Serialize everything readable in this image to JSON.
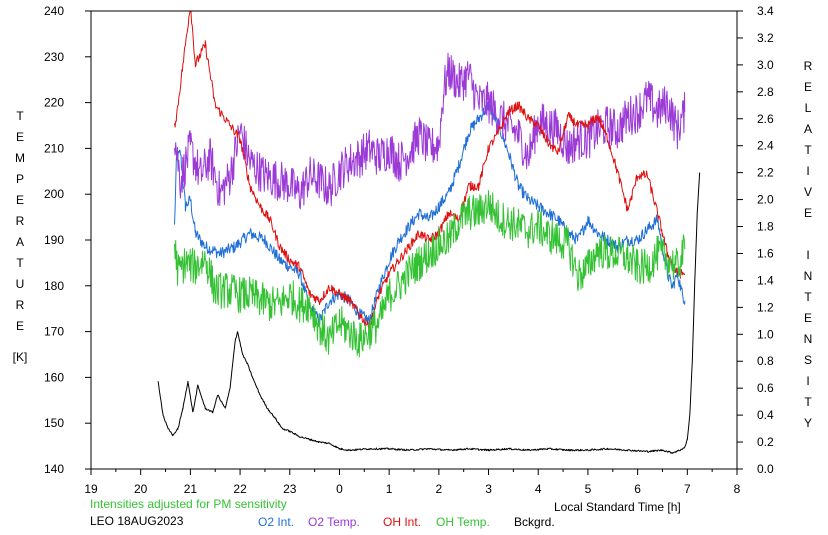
{
  "chart_data": {
    "type": "line",
    "left_axis": {
      "label_letters": [
        "T",
        "E",
        "M",
        "P",
        "E",
        "R",
        "A",
        "T",
        "U",
        "R",
        "E"
      ],
      "unit": "[K]",
      "range": [
        140,
        240
      ],
      "ticks": [
        140,
        150,
        160,
        170,
        180,
        190,
        200,
        210,
        220,
        230,
        240
      ]
    },
    "right_axis": {
      "label_letters": [
        "R",
        "E",
        "L",
        "A",
        "T",
        "I",
        "V",
        "E",
        " ",
        "I",
        "N",
        "T",
        "E",
        "N",
        "S",
        "I",
        "T",
        "Y"
      ],
      "range": [
        0.0,
        3.4
      ],
      "ticks": [
        "0.0",
        "0.2",
        "0.4",
        "0.6",
        "0.8",
        "1.0",
        "1.2",
        "1.4",
        "1.6",
        "1.8",
        "2.0",
        "2.2",
        "2.4",
        "2.6",
        "2.8",
        "3.0",
        "3.2",
        "3.4"
      ]
    },
    "x_axis": {
      "label": "Local Standard Time [h]",
      "range": [
        19,
        32
      ],
      "ticks": [
        "19",
        "20",
        "21",
        "22",
        "23",
        "0",
        "1",
        "2",
        "3",
        "4",
        "5",
        "6",
        "7",
        "8"
      ]
    },
    "note": "Intensities adjusted for PM sensitivity",
    "station": "LEO 18AUG2023",
    "legend": [
      "O2 Int.",
      "O2 Temp.",
      "OH Int.",
      "OH Temp.",
      "Bckgrd."
    ],
    "series": [
      {
        "name": "O2 Int.",
        "color": "#1f6fd6",
        "axis": "right",
        "noise": 0.045,
        "points": [
          [
            20.68,
            1.8
          ],
          [
            20.72,
            2.3
          ],
          [
            20.8,
            2.35
          ],
          [
            20.9,
            1.95
          ],
          [
            21.0,
            2.0
          ],
          [
            21.1,
            1.75
          ],
          [
            21.3,
            1.65
          ],
          [
            21.6,
            1.6
          ],
          [
            21.9,
            1.65
          ],
          [
            22.2,
            1.75
          ],
          [
            22.5,
            1.7
          ],
          [
            22.8,
            1.55
          ],
          [
            23.0,
            1.5
          ],
          [
            23.2,
            1.45
          ],
          [
            23.4,
            1.2
          ],
          [
            23.6,
            1.1
          ],
          [
            23.8,
            1.25
          ],
          [
            24.0,
            1.3
          ],
          [
            24.2,
            1.25
          ],
          [
            24.4,
            1.15
          ],
          [
            24.6,
            1.1
          ],
          [
            24.8,
            1.35
          ],
          [
            25.0,
            1.55
          ],
          [
            25.2,
            1.7
          ],
          [
            25.4,
            1.8
          ],
          [
            25.6,
            1.9
          ],
          [
            25.8,
            1.85
          ],
          [
            26.0,
            1.95
          ],
          [
            26.2,
            2.05
          ],
          [
            26.4,
            2.25
          ],
          [
            26.6,
            2.5
          ],
          [
            26.8,
            2.6
          ],
          [
            27.0,
            2.7
          ],
          [
            27.2,
            2.55
          ],
          [
            27.4,
            2.35
          ],
          [
            27.6,
            2.1
          ],
          [
            27.8,
            2.0
          ],
          [
            28.0,
            1.95
          ],
          [
            28.2,
            1.9
          ],
          [
            28.4,
            1.85
          ],
          [
            28.6,
            1.75
          ],
          [
            28.8,
            1.7
          ],
          [
            29.0,
            1.85
          ],
          [
            29.2,
            1.75
          ],
          [
            29.4,
            1.7
          ],
          [
            29.6,
            1.65
          ],
          [
            29.8,
            1.7
          ],
          [
            30.0,
            1.7
          ],
          [
            30.2,
            1.78
          ],
          [
            30.4,
            1.85
          ],
          [
            30.6,
            1.45
          ],
          [
            30.7,
            1.35
          ],
          [
            30.8,
            1.45
          ],
          [
            30.9,
            1.3
          ],
          [
            30.95,
            1.25
          ]
        ]
      },
      {
        "name": "O2 Temp.",
        "color": "#9b3ad6",
        "axis": "left",
        "noise": 4.5,
        "points": [
          [
            20.68,
            213
          ],
          [
            20.8,
            203
          ],
          [
            21.0,
            210
          ],
          [
            21.2,
            204
          ],
          [
            21.4,
            208
          ],
          [
            21.6,
            200
          ],
          [
            21.8,
            204
          ],
          [
            22.0,
            214
          ],
          [
            22.2,
            207
          ],
          [
            22.5,
            204
          ],
          [
            22.8,
            203
          ],
          [
            23.0,
            202
          ],
          [
            23.2,
            200
          ],
          [
            23.4,
            204
          ],
          [
            23.6,
            203
          ],
          [
            23.8,
            201
          ],
          [
            24.0,
            205
          ],
          [
            24.2,
            207
          ],
          [
            24.4,
            208
          ],
          [
            24.6,
            210
          ],
          [
            24.8,
            208
          ],
          [
            25.0,
            210
          ],
          [
            25.2,
            207
          ],
          [
            25.4,
            209
          ],
          [
            25.6,
            213
          ],
          [
            25.8,
            210
          ],
          [
            26.0,
            211
          ],
          [
            26.1,
            223
          ],
          [
            26.2,
            227
          ],
          [
            26.4,
            224
          ],
          [
            26.6,
            226
          ],
          [
            26.8,
            220
          ],
          [
            27.0,
            220
          ],
          [
            27.2,
            217
          ],
          [
            27.4,
            215
          ],
          [
            27.6,
            213
          ],
          [
            27.8,
            208
          ],
          [
            28.0,
            216
          ],
          [
            28.2,
            215
          ],
          [
            28.4,
            214
          ],
          [
            28.6,
            210
          ],
          [
            28.8,
            212
          ],
          [
            29.0,
            212
          ],
          [
            29.2,
            214
          ],
          [
            29.4,
            215
          ],
          [
            29.6,
            214
          ],
          [
            29.8,
            217
          ],
          [
            30.0,
            218
          ],
          [
            30.2,
            221
          ],
          [
            30.4,
            218
          ],
          [
            30.6,
            220
          ],
          [
            30.8,
            214
          ],
          [
            30.95,
            218
          ]
        ]
      },
      {
        "name": "OH Int.",
        "color": "#e01010",
        "axis": "right",
        "noise": 0.035,
        "points": [
          [
            20.68,
            2.55
          ],
          [
            20.72,
            2.62
          ],
          [
            20.85,
            3.0
          ],
          [
            21.0,
            3.45
          ],
          [
            21.1,
            3.0
          ],
          [
            21.3,
            3.15
          ],
          [
            21.5,
            2.7
          ],
          [
            21.8,
            2.55
          ],
          [
            22.0,
            2.45
          ],
          [
            22.2,
            2.1
          ],
          [
            22.4,
            1.95
          ],
          [
            22.6,
            1.85
          ],
          [
            22.8,
            1.65
          ],
          [
            23.0,
            1.55
          ],
          [
            23.2,
            1.5
          ],
          [
            23.4,
            1.3
          ],
          [
            23.6,
            1.25
          ],
          [
            23.8,
            1.35
          ],
          [
            24.0,
            1.3
          ],
          [
            24.2,
            1.25
          ],
          [
            24.4,
            1.15
          ],
          [
            24.6,
            1.05
          ],
          [
            24.8,
            1.3
          ],
          [
            25.0,
            1.45
          ],
          [
            25.2,
            1.55
          ],
          [
            25.4,
            1.65
          ],
          [
            25.6,
            1.75
          ],
          [
            25.8,
            1.7
          ],
          [
            26.0,
            1.75
          ],
          [
            26.2,
            1.9
          ],
          [
            26.4,
            1.85
          ],
          [
            26.6,
            2.1
          ],
          [
            26.8,
            2.1
          ],
          [
            27.0,
            2.38
          ],
          [
            27.2,
            2.5
          ],
          [
            27.4,
            2.65
          ],
          [
            27.6,
            2.7
          ],
          [
            27.8,
            2.6
          ],
          [
            28.0,
            2.55
          ],
          [
            28.2,
            2.42
          ],
          [
            28.4,
            2.35
          ],
          [
            28.6,
            2.62
          ],
          [
            28.8,
            2.55
          ],
          [
            29.0,
            2.55
          ],
          [
            29.2,
            2.62
          ],
          [
            29.4,
            2.45
          ],
          [
            29.6,
            2.2
          ],
          [
            29.8,
            1.92
          ],
          [
            30.0,
            2.18
          ],
          [
            30.2,
            2.18
          ],
          [
            30.4,
            1.9
          ],
          [
            30.5,
            1.75
          ],
          [
            30.6,
            1.6
          ],
          [
            30.8,
            1.45
          ],
          [
            30.95,
            1.45
          ]
        ]
      },
      {
        "name": "OH Temp.",
        "color": "#34c234",
        "axis": "left",
        "noise": 4.0,
        "points": [
          [
            20.68,
            189
          ],
          [
            20.75,
            183
          ],
          [
            20.9,
            185
          ],
          [
            21.1,
            184
          ],
          [
            21.3,
            186
          ],
          [
            21.5,
            179
          ],
          [
            21.8,
            179
          ],
          [
            22.0,
            178
          ],
          [
            22.2,
            178
          ],
          [
            22.4,
            177
          ],
          [
            22.6,
            176
          ],
          [
            22.8,
            176
          ],
          [
            23.0,
            178
          ],
          [
            23.2,
            176
          ],
          [
            23.4,
            176
          ],
          [
            23.6,
            171
          ],
          [
            23.8,
            168
          ],
          [
            24.0,
            172
          ],
          [
            24.2,
            170
          ],
          [
            24.4,
            168
          ],
          [
            24.6,
            170
          ],
          [
            24.8,
            172
          ],
          [
            25.0,
            178
          ],
          [
            25.2,
            180
          ],
          [
            25.4,
            183
          ],
          [
            25.6,
            185
          ],
          [
            25.8,
            187
          ],
          [
            26.0,
            189
          ],
          [
            26.2,
            190
          ],
          [
            26.4,
            194
          ],
          [
            26.6,
            196
          ],
          [
            26.8,
            196
          ],
          [
            27.0,
            198
          ],
          [
            27.2,
            195
          ],
          [
            27.4,
            194
          ],
          [
            27.6,
            193
          ],
          [
            27.8,
            192
          ],
          [
            28.0,
            193
          ],
          [
            28.2,
            191
          ],
          [
            28.4,
            190
          ],
          [
            28.6,
            189
          ],
          [
            28.8,
            182
          ],
          [
            29.0,
            184
          ],
          [
            29.2,
            188
          ],
          [
            29.4,
            187
          ],
          [
            29.6,
            187
          ],
          [
            29.8,
            186
          ],
          [
            30.0,
            184
          ],
          [
            30.2,
            184
          ],
          [
            30.4,
            187
          ],
          [
            30.6,
            186
          ],
          [
            30.8,
            184
          ],
          [
            30.95,
            188
          ]
        ]
      },
      {
        "name": "Bckgrd.",
        "color": "#000000",
        "axis": "right",
        "noise": 0.006,
        "points": [
          [
            20.35,
            0.65
          ],
          [
            20.45,
            0.4
          ],
          [
            20.55,
            0.3
          ],
          [
            20.65,
            0.25
          ],
          [
            20.75,
            0.3
          ],
          [
            20.85,
            0.45
          ],
          [
            20.95,
            0.65
          ],
          [
            21.05,
            0.42
          ],
          [
            21.15,
            0.62
          ],
          [
            21.3,
            0.45
          ],
          [
            21.45,
            0.42
          ],
          [
            21.55,
            0.55
          ],
          [
            21.7,
            0.45
          ],
          [
            21.8,
            0.6
          ],
          [
            21.9,
            0.95
          ],
          [
            21.95,
            1.02
          ],
          [
            22.05,
            0.85
          ],
          [
            22.15,
            0.78
          ],
          [
            22.25,
            0.68
          ],
          [
            22.4,
            0.55
          ],
          [
            22.55,
            0.45
          ],
          [
            22.7,
            0.38
          ],
          [
            22.85,
            0.3
          ],
          [
            23.0,
            0.28
          ],
          [
            23.2,
            0.24
          ],
          [
            23.4,
            0.22
          ],
          [
            23.6,
            0.2
          ],
          [
            23.8,
            0.19
          ],
          [
            24.0,
            0.15
          ],
          [
            24.2,
            0.14
          ],
          [
            24.6,
            0.15
          ],
          [
            25.0,
            0.15
          ],
          [
            25.4,
            0.14
          ],
          [
            25.8,
            0.15
          ],
          [
            26.2,
            0.14
          ],
          [
            26.6,
            0.15
          ],
          [
            27.0,
            0.14
          ],
          [
            27.4,
            0.15
          ],
          [
            27.8,
            0.14
          ],
          [
            28.2,
            0.15
          ],
          [
            28.6,
            0.14
          ],
          [
            29.0,
            0.14
          ],
          [
            29.4,
            0.15
          ],
          [
            29.8,
            0.14
          ],
          [
            30.2,
            0.13
          ],
          [
            30.5,
            0.14
          ],
          [
            30.7,
            0.12
          ],
          [
            30.85,
            0.14
          ],
          [
            30.95,
            0.16
          ],
          [
            31.0,
            0.22
          ],
          [
            31.05,
            0.4
          ],
          [
            31.1,
            0.8
          ],
          [
            31.15,
            1.4
          ],
          [
            31.2,
            1.9
          ],
          [
            31.25,
            2.2
          ]
        ]
      }
    ]
  }
}
